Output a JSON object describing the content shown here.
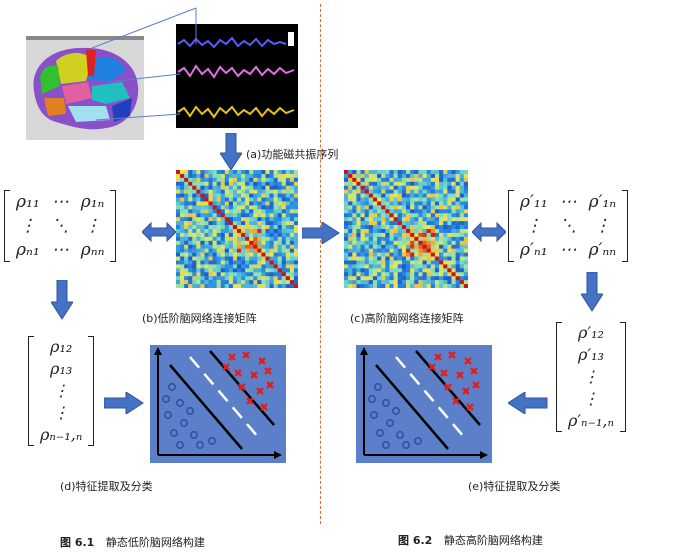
{
  "captions": {
    "a": "(a)功能磁共振序列",
    "b": "(b)低阶脑网络连接矩阵",
    "c": "(c)高阶脑网络连接矩阵",
    "d": "(d)特征提取及分类",
    "e": "(e)特征提取及分类"
  },
  "figure_titles": {
    "left_label": "图 6.1",
    "left_text": "静态低阶脑网络构建",
    "right_label": "图 6.2",
    "right_text": "静态高阶脑网络构建"
  },
  "matrix_low": {
    "r1c1": "ρ₁₁",
    "r1c2": "⋯",
    "r1c3": "ρ₁ₙ",
    "r2c1": "⋮",
    "r2c2": "⋱",
    "r2c3": "⋮",
    "r3c1": "ρₙ₁",
    "r3c2": "⋯",
    "r3c3": "ρₙₙ"
  },
  "matrix_high": {
    "r1c1": "ρ′₁₁",
    "r1c2": "⋯",
    "r1c3": "ρ′₁ₙ",
    "r2c1": "⋮",
    "r2c2": "⋱",
    "r2c3": "⋮",
    "r3c1": "ρ′ₙ₁",
    "r3c2": "⋯",
    "r3c3": "ρ′ₙₙ"
  },
  "vector_low": {
    "v1": "ρ₁₂",
    "v2": "ρ₁₃",
    "v3": "⋮",
    "v4": "⋮",
    "v5": "ρₙ₋₁,ₙ"
  },
  "vector_high": {
    "v1": "ρ′₁₂",
    "v2": "ρ′₁₃",
    "v3": "⋮",
    "v4": "⋮",
    "v5": "ρ′ₙ₋₁,ₙ"
  },
  "colors": {
    "arrow": "#4472c4",
    "arrow_edge": "#2f5597",
    "divider": "#e07030",
    "classifier_bg": "#5b7fc8",
    "class_positive": "#e02020",
    "class_negative": "#2a4fa0",
    "fmri_bg": "#000000",
    "signal_blue": "#5a5aff",
    "signal_pink": "#e070e0",
    "signal_yellow": "#e8c020"
  }
}
